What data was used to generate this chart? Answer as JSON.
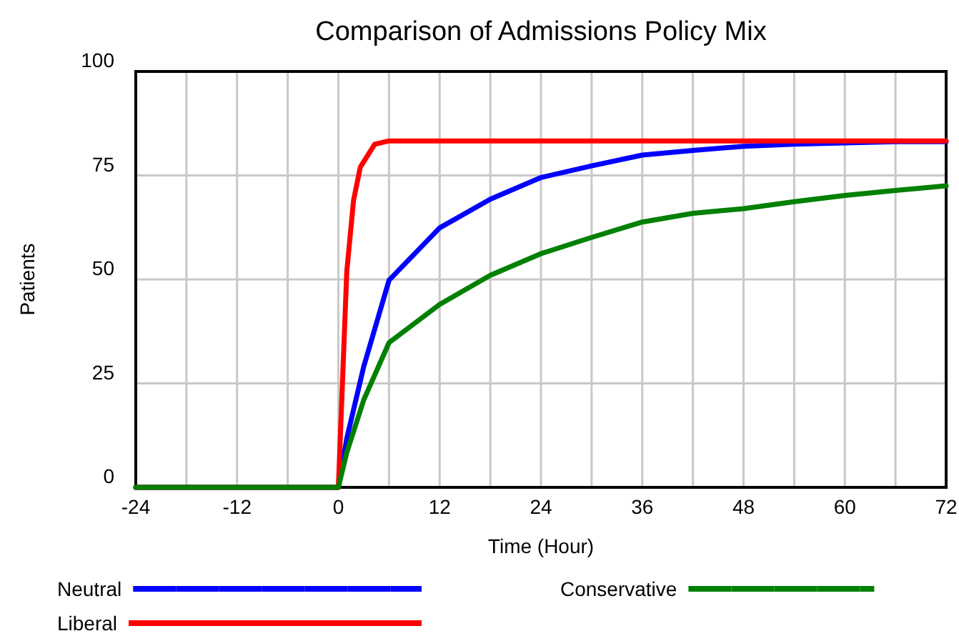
{
  "chart_data": {
    "type": "line",
    "title": "Comparison of Admissions Policy Mix",
    "xlabel": "Time (Hour)",
    "ylabel": "Patients",
    "xlim": [
      -24,
      72
    ],
    "xticks": [
      -24,
      -12,
      0,
      12,
      24,
      36,
      48,
      60,
      72
    ],
    "ylim": [
      0,
      100
    ],
    "yticks": [
      0,
      25,
      50,
      75,
      100
    ],
    "grid": true,
    "legend": "bottom",
    "series": [
      {
        "name": "Neutral",
        "color": "#0000ff",
        "x": [
          -24,
          0,
          1,
          3,
          6,
          12,
          18,
          24,
          30,
          36,
          42,
          48,
          54,
          60,
          66,
          72
        ],
        "values": [
          0,
          0,
          11.8,
          29,
          49.8,
          62.4,
          69.3,
          74.5,
          77.3,
          79.9,
          81,
          82,
          82.5,
          82.8,
          83.1,
          83.1
        ]
      },
      {
        "name": "Liberal",
        "color": "#ff0000",
        "x": [
          -24,
          0,
          1,
          1.8,
          2.6,
          4.3,
          6,
          12,
          24,
          36,
          48,
          60,
          72
        ],
        "values": [
          0,
          0,
          52,
          69,
          77,
          82.5,
          83.3,
          83.3,
          83.3,
          83.3,
          83.3,
          83.3,
          83.3
        ]
      },
      {
        "name": "Conservative",
        "color": "#008000",
        "x": [
          -24,
          0,
          1,
          3,
          6,
          12,
          18,
          24,
          30,
          36,
          42,
          48,
          54,
          60,
          66,
          72
        ],
        "values": [
          0,
          0,
          8.4,
          21,
          34.8,
          44,
          51,
          56.2,
          60.1,
          63.8,
          65.9,
          67,
          68.7,
          70.2,
          71.4,
          72.5
        ]
      }
    ]
  }
}
